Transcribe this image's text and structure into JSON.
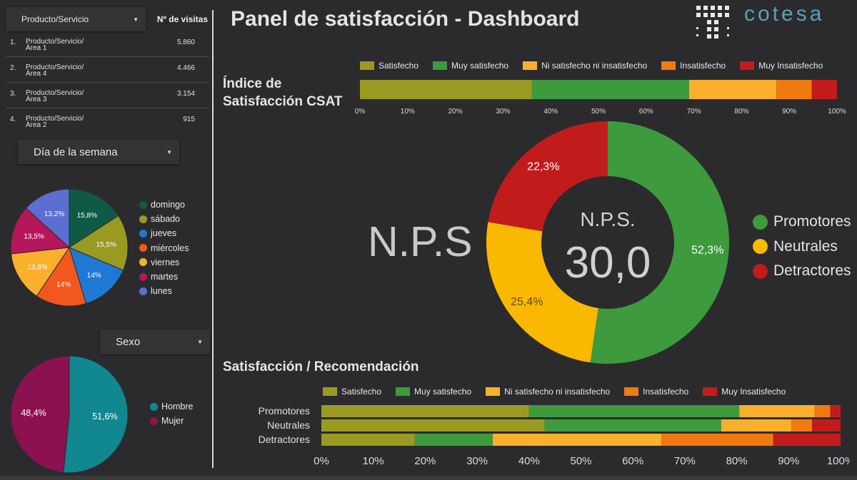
{
  "title": "Panel de satisfacción - Dashboard",
  "logo_text": "cotesa",
  "visits_table": {
    "dropdown_label": "Producto/Servicio",
    "value_header": "Nº de visitas",
    "rows": [
      {
        "index": "1.",
        "name_line1": "Producto/Servicio/",
        "name_line2": "Área 1",
        "value": "5.860"
      },
      {
        "index": "2.",
        "name_line1": "Producto/Servicio/",
        "name_line2": "Área 4",
        "value": "4.466"
      },
      {
        "index": "3.",
        "name_line1": "Producto/Servicio/",
        "name_line2": "Área 3",
        "value": "3.154"
      },
      {
        "index": "4.",
        "name_line1": "Producto/Servicio/",
        "name_line2": "Área 2",
        "value": "915"
      }
    ]
  },
  "filters": {
    "day_label": "Día de la semana",
    "sex_label": "Sexo"
  },
  "colors": {
    "satisfecho": "#9a9a22",
    "muy_satisfecho": "#3d9a3d",
    "neutral": "#fbb02d",
    "insatisfecho": "#f07a10",
    "muy_insatisfecho": "#c21b1b"
  },
  "csat": {
    "title_line1": "Índice de",
    "title_line2": "Satisfacción CSAT"
  },
  "nps": {
    "big_label": "N.P.S",
    "center_label": "N.P.S.",
    "center_value": "30,0"
  },
  "satrec": {
    "title": "Satisfacción / Recomendación"
  },
  "chart_data": [
    {
      "type": "pie",
      "legend_position": "right",
      "labels": [
        "domingo",
        "sábado",
        "jueves",
        "miércoles",
        "viernes",
        "martes",
        "lunes"
      ],
      "values": [
        15.8,
        15.5,
        14,
        14,
        13.8,
        13.5,
        13.2
      ],
      "value_labels": [
        "15,8%",
        "15,5%",
        "14%",
        "14%",
        "13,8%",
        "13,5%",
        "13,2%"
      ],
      "colors": [
        "#0e5a45",
        "#9a9a22",
        "#1f78d4",
        "#f2581e",
        "#fbb02d",
        "#b5175a",
        "#5b6fd1"
      ]
    },
    {
      "type": "pie",
      "legend_position": "right",
      "labels": [
        "Hombre",
        "Mujer"
      ],
      "values": [
        51.6,
        48.4
      ],
      "value_labels": [
        "51,6%",
        "48,4%"
      ],
      "colors": [
        "#11878f",
        "#8c1150"
      ]
    },
    {
      "type": "bar",
      "orientation": "horizontal",
      "stacked": true,
      "legend_position": "top",
      "series": [
        {
          "name": "Satisfecho",
          "values": [
            36
          ]
        },
        {
          "name": "Muy satisfecho",
          "values": [
            33
          ]
        },
        {
          "name": "Ni satisfecho ni insatisfecho",
          "values": [
            18.3
          ]
        },
        {
          "name": "Insatisfecho",
          "values": [
            7.4
          ]
        },
        {
          "name": "Muy Insatisfecho",
          "values": [
            5.3
          ]
        }
      ],
      "xlim": [
        0,
        100
      ],
      "xticks": [
        "0%",
        "10%",
        "20%",
        "30%",
        "40%",
        "50%",
        "60%",
        "70%",
        "80%",
        "90%",
        "100%"
      ]
    },
    {
      "type": "pie",
      "donut": true,
      "legend_position": "right",
      "labels": [
        "Promotores",
        "Neutrales",
        "Detractores"
      ],
      "values": [
        52.3,
        25.4,
        22.3
      ],
      "value_labels": [
        "52,3%",
        "25,4%",
        "22,3%"
      ],
      "colors": [
        "#3d9a3d",
        "#fbb800",
        "#c21b1b"
      ]
    },
    {
      "type": "bar",
      "orientation": "horizontal",
      "stacked": true,
      "legend_position": "top",
      "categories": [
        "Promotores",
        "Neutrales",
        "Detractores"
      ],
      "series": [
        {
          "name": "Satisfecho",
          "values": [
            40,
            43,
            18
          ]
        },
        {
          "name": "Muy satisfecho",
          "values": [
            40.5,
            34,
            15
          ]
        },
        {
          "name": "Ni satisfecho ni insatisfecho",
          "values": [
            14.5,
            13.5,
            32.5
          ]
        },
        {
          "name": "Insatisfecho",
          "values": [
            3,
            4,
            21.5
          ]
        },
        {
          "name": "Muy Insatisfecho",
          "values": [
            2,
            5.5,
            13
          ]
        }
      ],
      "xlim": [
        0,
        100
      ],
      "xticks": [
        "0%",
        "10%",
        "20%",
        "30%",
        "40%",
        "50%",
        "60%",
        "70%",
        "80%",
        "90%",
        "100%"
      ]
    }
  ]
}
